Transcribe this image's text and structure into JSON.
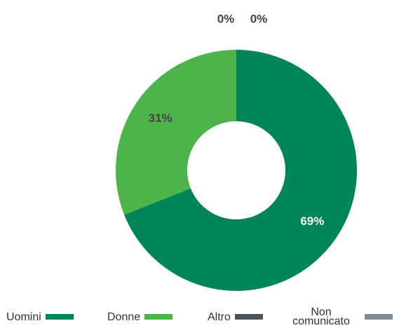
{
  "chart_data": {
    "type": "donut",
    "categories": [
      "Uomini",
      "Donne",
      "Altro",
      "Non comunicato"
    ],
    "values": [
      69,
      31,
      0,
      0
    ],
    "value_labels": [
      "69%",
      "31%",
      "0%",
      "0%"
    ],
    "colors": [
      "#008556",
      "#4db34a",
      "#4b535c",
      "#7f8a92"
    ],
    "legend": "bottom"
  }
}
